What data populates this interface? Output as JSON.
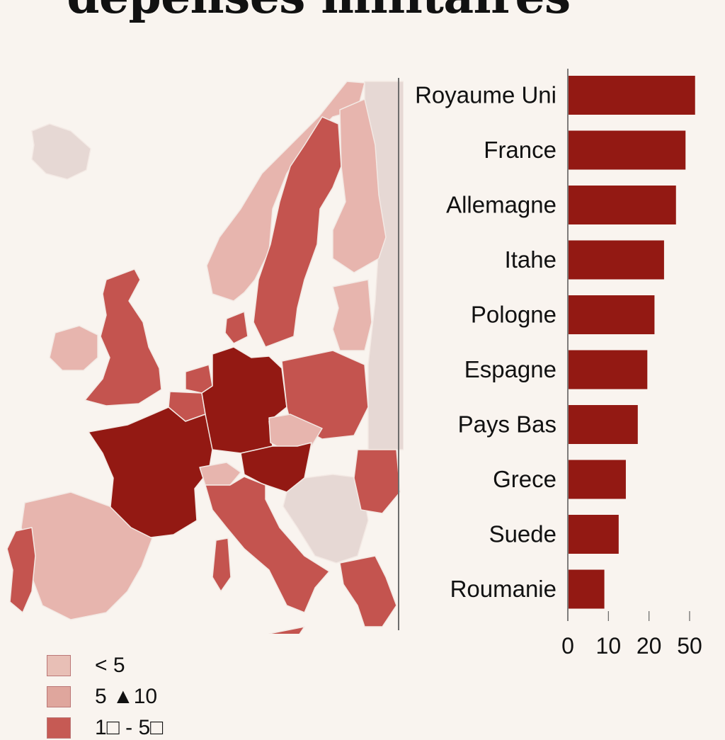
{
  "title": "dépenses militaires",
  "colors": {
    "background": "#f9f4ef",
    "bar": "#931913",
    "dark": "#931913",
    "medium": "#c4544f",
    "light": "#e7b5ae",
    "pale": "#e6d8d4"
  },
  "legend": {
    "items": [
      {
        "label": "< 5",
        "color": "#e8bfb6"
      },
      {
        "label": "5 ▲10",
        "color": "#dfa69d"
      },
      {
        "label": "1□ - 5□",
        "color": "#c65a54"
      }
    ]
  },
  "map": {
    "countries": [
      {
        "name": "Islande",
        "shade": "pale"
      },
      {
        "name": "Irlande",
        "shade": "light"
      },
      {
        "name": "Royaume Uni",
        "shade": "medium"
      },
      {
        "name": "Norvège",
        "shade": "light"
      },
      {
        "name": "Suède",
        "shade": "medium"
      },
      {
        "name": "Finlande",
        "shade": "light"
      },
      {
        "name": "Danemark",
        "shade": "medium"
      },
      {
        "name": "Pays Bas",
        "shade": "medium"
      },
      {
        "name": "Belgique",
        "shade": "medium"
      },
      {
        "name": "France",
        "shade": "dark"
      },
      {
        "name": "Allemagne",
        "shade": "dark"
      },
      {
        "name": "Pologne",
        "shade": "medium"
      },
      {
        "name": "Tchéquie",
        "shade": "light"
      },
      {
        "name": "Autriche",
        "shade": "dark"
      },
      {
        "name": "Suisse",
        "shade": "light"
      },
      {
        "name": "Italie",
        "shade": "medium"
      },
      {
        "name": "Espagne",
        "shade": "light"
      },
      {
        "name": "Portugal",
        "shade": "medium"
      },
      {
        "name": "Roumanie",
        "shade": "medium"
      },
      {
        "name": "Balkans",
        "shade": "pale"
      },
      {
        "name": "Grèce",
        "shade": "medium"
      },
      {
        "name": "Baltes",
        "shade": "light"
      },
      {
        "name": "Russie",
        "shade": "pale"
      }
    ]
  },
  "chart_data": {
    "type": "bar",
    "orientation": "horizontal",
    "title": "",
    "categories": [
      "Royaume Uni",
      "France",
      "Allemagne",
      "Itahe",
      "Pologne",
      "Espagne",
      "Pays Bas",
      "Grece",
      "Suede",
      "Roumanie"
    ],
    "values": [
      53,
      49,
      45,
      40,
      36,
      33,
      29,
      24,
      21,
      15
    ],
    "xticks": [
      "0",
      "10",
      "20",
      "50"
    ],
    "xtick_positions": [
      0,
      17,
      34,
      51
    ],
    "xlim": [
      0,
      53
    ],
    "grid": false
  }
}
